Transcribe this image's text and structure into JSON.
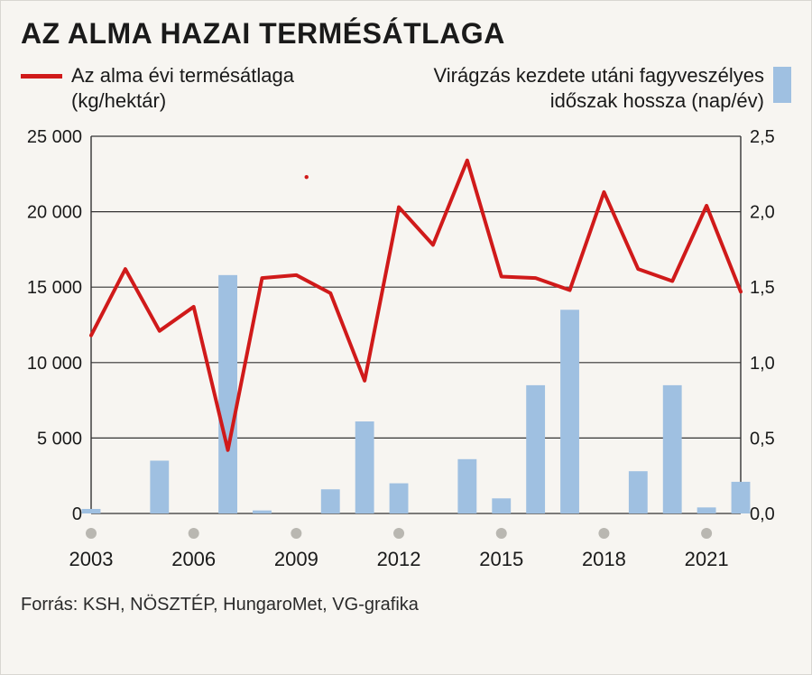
{
  "title": "AZ ALMA HAZAI TERMÉSÁTLAGA",
  "legend": {
    "line_label": "Az alma évi termésátlaga (kg/hektár)",
    "bar_label": "Virágzás kezdete utáni fagyveszélyes időszak hossza (nap/év)"
  },
  "chart": {
    "type": "combo-line-bar",
    "years": [
      2003,
      2004,
      2005,
      2006,
      2007,
      2008,
      2009,
      2010,
      2011,
      2012,
      2013,
      2014,
      2015,
      2016,
      2017,
      2018,
      2019,
      2020,
      2021,
      2022
    ],
    "x_tick_years": [
      2003,
      2006,
      2009,
      2012,
      2015,
      2018,
      2021
    ],
    "y_left": {
      "min": 0,
      "max": 25000,
      "step": 5000,
      "labels": [
        "0",
        "5 000",
        "10 000",
        "15 000",
        "20 000",
        "25 000"
      ]
    },
    "y_right": {
      "min": 0,
      "max": 2.5,
      "step": 0.5,
      "labels": [
        "0,0",
        "0,5",
        "1,0",
        "1,5",
        "2,0",
        "2,5"
      ]
    },
    "line_series": {
      "color": "#d01a1a",
      "width": 4,
      "values": [
        11800,
        16200,
        12100,
        13700,
        4200,
        15600,
        15800,
        14600,
        8800,
        20300,
        17800,
        23400,
        15700,
        15600,
        14800,
        21300,
        16200,
        15400,
        20400,
        14700
      ]
    },
    "bar_series": {
      "color": "#9fc0e1",
      "width_ratio": 0.55,
      "values": [
        0.03,
        0.0,
        0.35,
        0.0,
        1.58,
        0.02,
        0.0,
        0.16,
        0.61,
        0.2,
        0.0,
        0.36,
        0.1,
        0.85,
        1.35,
        0.0,
        0.28,
        0.85,
        0.04,
        0.21
      ]
    },
    "grid": {
      "color": "#333333",
      "axis_color": "#333333",
      "dot_color": "#b9b7b1",
      "outlier_dot": {
        "year": 2009.3,
        "y_left_value": 22300,
        "color": "#d01a1a",
        "radius": 2.2
      }
    },
    "plot_bg": "#f7f5f1",
    "tick_fontsize": 20
  },
  "source": "Forrás: KSH, NÖSZTÉP, HungaroMet, VG-grafika"
}
